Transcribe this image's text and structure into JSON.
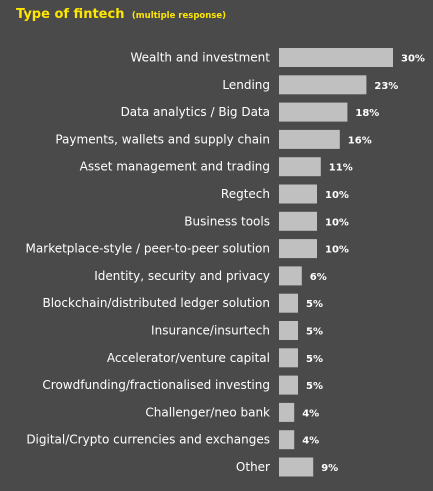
{
  "colors": {
    "background": "#4a4a4a",
    "title": "#ffe600",
    "bar": "#c0c0c0",
    "text": "#ffffff"
  },
  "chart_data": {
    "type": "bar",
    "orientation": "horizontal",
    "title": "Type of fintech",
    "subtitle": "(multiple response)",
    "categories": [
      "Wealth and investment",
      "Lending",
      "Data analytics / Big Data",
      "Payments, wallets and supply chain",
      "Asset management and trading",
      "Regtech",
      "Business tools",
      "Marketplace-style / peer-to-peer solution",
      "Identity, security and privacy",
      "Blockchain/distributed ledger solution",
      "Insurance/insurtech",
      "Accelerator/venture capital",
      "Crowdfunding/fractionalised investing",
      "Challenger/neo bank",
      "Digital/Crypto currencies and exchanges",
      "Other"
    ],
    "values": [
      30,
      23,
      18,
      16,
      11,
      10,
      10,
      10,
      6,
      5,
      5,
      5,
      5,
      4,
      4,
      9
    ],
    "value_labels": [
      "30%",
      "23%",
      "18%",
      "16%",
      "11%",
      "10%",
      "10%",
      "10%",
      "6%",
      "5%",
      "5%",
      "5%",
      "5%",
      "4%",
      "4%",
      "9%"
    ],
    "unit": "%",
    "xlim": [
      0,
      30
    ],
    "grid": false,
    "legend": "none"
  }
}
